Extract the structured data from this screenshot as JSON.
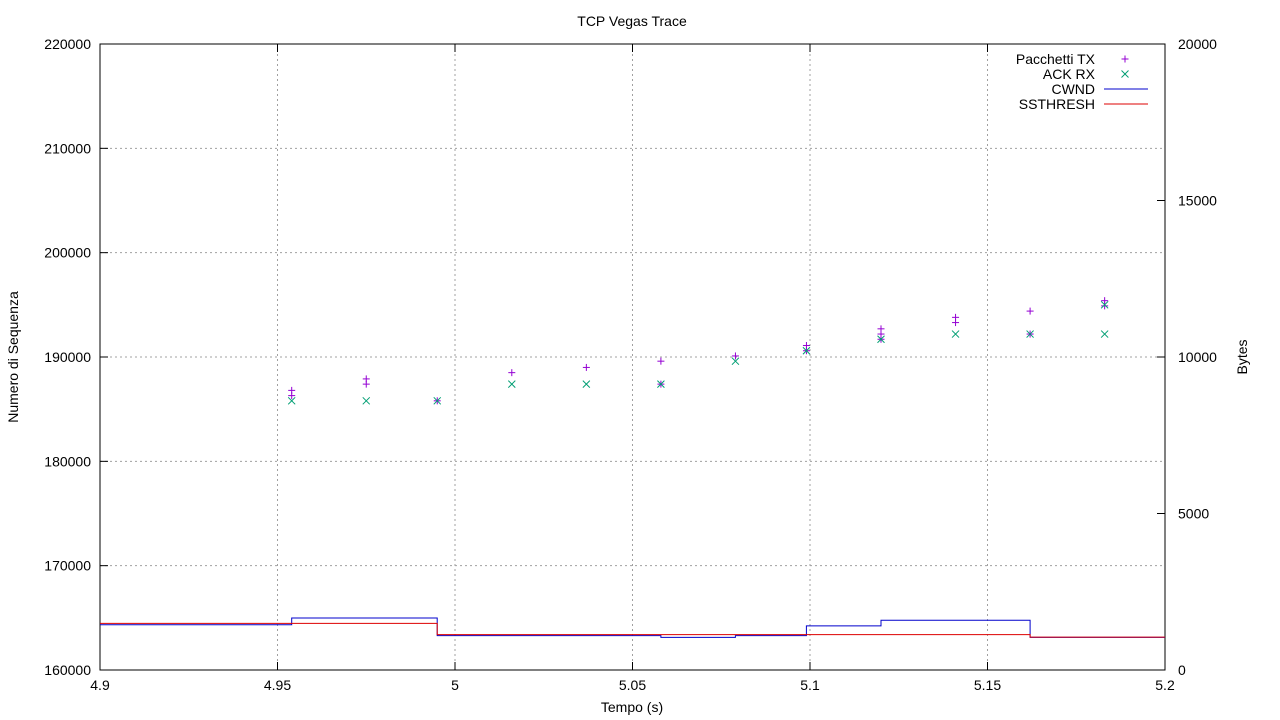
{
  "chart_data": {
    "type": "scatter",
    "title": "TCP Vegas Trace",
    "xlabel": "Tempo (s)",
    "ylabel": "Numero di Sequenza",
    "y2label": "Bytes",
    "xlim": [
      4.9,
      5.2
    ],
    "ylim": [
      160000,
      220000
    ],
    "y2lim": [
      0,
      20000
    ],
    "xticks": [
      "4.9",
      "4.95",
      "5",
      "5.05",
      "5.1",
      "5.15",
      "5.2"
    ],
    "yticks": [
      "160000",
      "170000",
      "180000",
      "190000",
      "200000",
      "210000",
      "220000"
    ],
    "y2ticks": [
      "0",
      "5000",
      "10000",
      "15000",
      "20000"
    ],
    "grid": true,
    "legend_position": "top-right",
    "series": [
      {
        "name": "Pacchetti TX",
        "axis": "y",
        "marker": "plus",
        "color": "#9400d3",
        "points": [
          [
            4.954,
            186300
          ],
          [
            4.954,
            186800
          ],
          [
            4.975,
            187400
          ],
          [
            4.975,
            187900
          ],
          [
            4.995,
            185800
          ],
          [
            5.016,
            188500
          ],
          [
            5.037,
            189000
          ],
          [
            5.058,
            187400
          ],
          [
            5.058,
            189600
          ],
          [
            5.079,
            190100
          ],
          [
            5.099,
            190600
          ],
          [
            5.099,
            191100
          ],
          [
            5.12,
            191700
          ],
          [
            5.12,
            192200
          ],
          [
            5.12,
            192700
          ],
          [
            5.141,
            193300
          ],
          [
            5.141,
            193800
          ],
          [
            5.162,
            192200
          ],
          [
            5.162,
            194400
          ],
          [
            5.183,
            194900
          ],
          [
            5.183,
            195400
          ]
        ]
      },
      {
        "name": "ACK RX",
        "axis": "y",
        "marker": "cross",
        "color": "#009e73",
        "points": [
          [
            4.954,
            185800
          ],
          [
            4.975,
            185800
          ],
          [
            4.995,
            185800
          ],
          [
            5.016,
            187400
          ],
          [
            5.037,
            187400
          ],
          [
            5.058,
            187400
          ],
          [
            5.079,
            189600
          ],
          [
            5.099,
            190600
          ],
          [
            5.12,
            191700
          ],
          [
            5.141,
            192200
          ],
          [
            5.162,
            192200
          ],
          [
            5.183,
            195000
          ],
          [
            5.183,
            192200
          ]
        ]
      },
      {
        "name": "CWND",
        "axis": "y2",
        "type": "step",
        "color": "#0000cc",
        "points": [
          [
            4.9,
            1448
          ],
          [
            4.954,
            1448
          ],
          [
            4.954,
            1660
          ],
          [
            4.995,
            1660
          ],
          [
            4.995,
            1100
          ],
          [
            5.058,
            1100
          ],
          [
            5.058,
            1040
          ],
          [
            5.079,
            1040
          ],
          [
            5.079,
            1100
          ],
          [
            5.099,
            1100
          ],
          [
            5.099,
            1410
          ],
          [
            5.12,
            1410
          ],
          [
            5.12,
            1590
          ],
          [
            5.162,
            1590
          ],
          [
            5.162,
            1040
          ],
          [
            5.2,
            1040
          ]
        ]
      },
      {
        "name": "SSTHRESH",
        "axis": "y2",
        "type": "step",
        "color": "#dd0000",
        "points": [
          [
            4.9,
            1490
          ],
          [
            4.995,
            1490
          ],
          [
            4.995,
            1130
          ],
          [
            5.162,
            1130
          ],
          [
            5.162,
            1050
          ],
          [
            5.2,
            1050
          ]
        ]
      }
    ]
  }
}
